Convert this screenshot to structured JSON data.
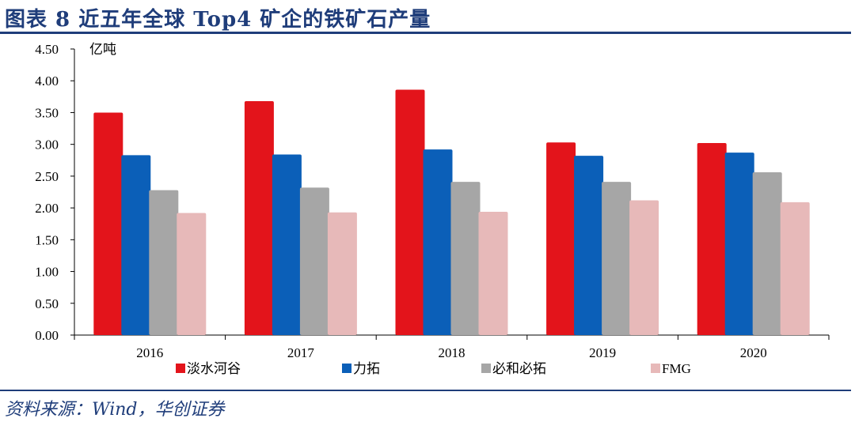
{
  "header": {
    "title": "图表 8  近五年全球 Top4 矿企的铁矿石产量"
  },
  "footer": {
    "source": "资料来源：Wind，华创证券"
  },
  "chart_data": {
    "type": "bar",
    "title": "",
    "xlabel": "",
    "ylabel": "亿吨",
    "ylim": [
      0,
      4.5
    ],
    "yticks": [
      0.0,
      0.5,
      1.0,
      1.5,
      2.0,
      2.5,
      3.0,
      3.5,
      4.0,
      4.5
    ],
    "categories": [
      "2016",
      "2017",
      "2018",
      "2019",
      "2020"
    ],
    "series": [
      {
        "name": "淡水河谷",
        "color": "#e3141b",
        "values": [
          3.5,
          3.68,
          3.86,
          3.03,
          3.02
        ]
      },
      {
        "name": "力拓",
        "color": "#0b5fb8",
        "values": [
          2.83,
          2.84,
          2.92,
          2.82,
          2.87
        ]
      },
      {
        "name": "必和必拓",
        "color": "#a6a6a6",
        "values": [
          2.28,
          2.32,
          2.41,
          2.41,
          2.56
        ]
      },
      {
        "name": "FMG",
        "color": "#e7b9b9",
        "values": [
          1.92,
          1.93,
          1.94,
          2.12,
          2.09
        ]
      }
    ],
    "grid": false,
    "legend": "bottom"
  }
}
